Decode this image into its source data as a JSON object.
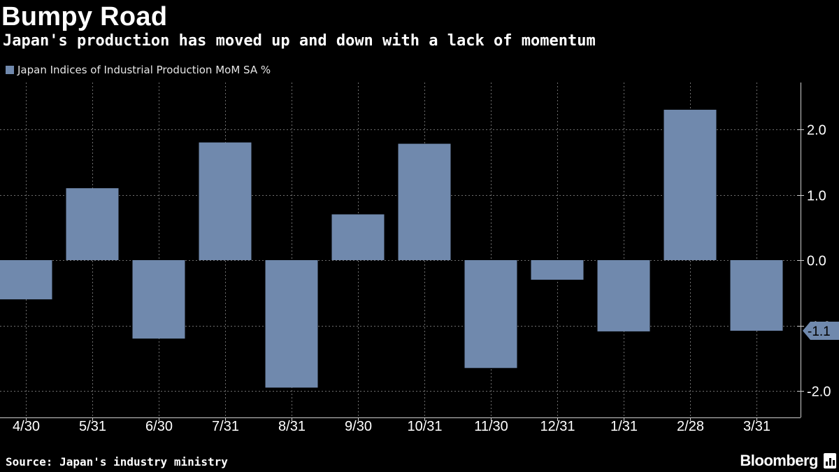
{
  "title": "Bumpy Road",
  "subtitle": "Japan's production has moved up and down with a lack of momentum",
  "source": "Source: Japan's industry ministry",
  "brand": "Bloomberg",
  "colors": {
    "background": "#000000",
    "bar": "#7089ad",
    "grid": "#6e6e6e",
    "text": "#ffffff"
  },
  "chart_data": {
    "type": "bar",
    "legend_position": "top-left",
    "grid": true,
    "categories": [
      "4/30",
      "5/31",
      "6/30",
      "7/31",
      "8/31",
      "9/30",
      "10/31",
      "11/30",
      "12/31",
      "1/31",
      "2/28",
      "3/31"
    ],
    "series": [
      {
        "name": "Japan Indices of Industrial Production MoM SA %",
        "values": [
          -0.6,
          1.1,
          -1.2,
          1.8,
          -1.95,
          0.7,
          1.78,
          -1.65,
          -0.3,
          -1.09,
          2.3,
          -1.08
        ]
      }
    ],
    "ylim": [
      -2.4,
      2.7
    ],
    "yticks": [
      -2.0,
      -1.0,
      0.0,
      1.0,
      2.0
    ],
    "ytick_labels": [
      "-2.0",
      "-1.0",
      "0.0",
      "1.0",
      "2.0"
    ],
    "last_value_label": "-1.1",
    "xlabel": "",
    "ylabel": ""
  }
}
